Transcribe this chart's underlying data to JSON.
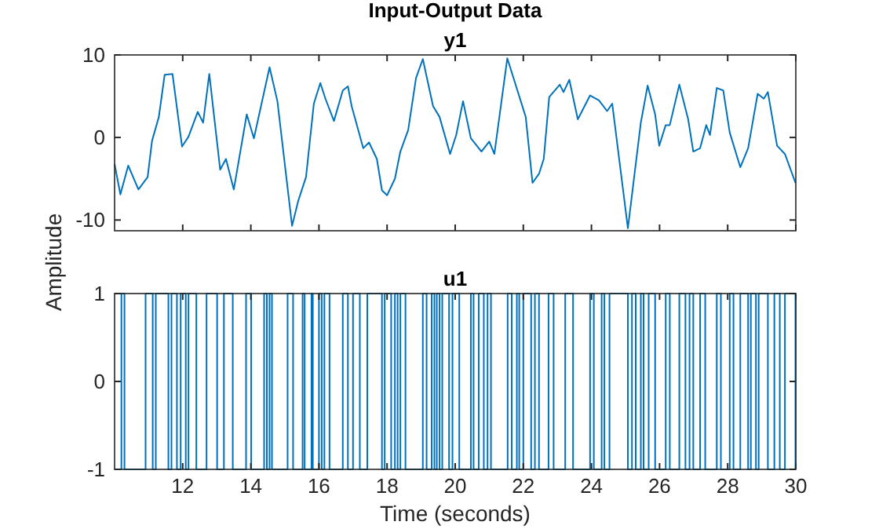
{
  "chart_data": [
    {
      "type": "line",
      "title": "Input-Output Data",
      "subtitle": "y1",
      "ylabel": "Amplitude",
      "xlim": [
        10,
        30
      ],
      "ylim": [
        -11.3,
        10
      ],
      "xticks": [
        12,
        14,
        16,
        18,
        20,
        22,
        24,
        26,
        28,
        30
      ],
      "yticks": [
        -10,
        0,
        10
      ],
      "tick_labels": "y",
      "grid": false,
      "series": [
        {
          "color": "#0072bd",
          "x": [
            10.0,
            10.17,
            10.4,
            10.7,
            10.97,
            11.1,
            11.3,
            11.47,
            11.7,
            11.98,
            12.17,
            12.44,
            12.6,
            12.78,
            13.1,
            13.27,
            13.5,
            13.88,
            14.09,
            14.55,
            14.78,
            15.21,
            15.39,
            15.62,
            15.85,
            16.04,
            16.19,
            16.44,
            16.7,
            16.85,
            16.96,
            17.3,
            17.47,
            17.7,
            17.85,
            18.0,
            18.23,
            18.39,
            18.62,
            18.85,
            19.05,
            19.35,
            19.54,
            19.85,
            20.03,
            20.23,
            20.46,
            20.77,
            21.0,
            21.15,
            21.53,
            22.07,
            22.27,
            22.46,
            22.6,
            22.76,
            23.07,
            23.18,
            23.35,
            23.6,
            23.96,
            24.22,
            24.46,
            24.61,
            25.07,
            25.45,
            25.65,
            25.87,
            25.99,
            26.18,
            26.3,
            26.58,
            26.84,
            26.99,
            27.19,
            27.37,
            27.48,
            27.68,
            27.87,
            28.06,
            28.37,
            28.6,
            28.88,
            29.06,
            29.18,
            29.45,
            29.68,
            29.99
          ],
          "values": [
            -3.2,
            -6.9,
            -3.4,
            -6.3,
            -4.8,
            -0.4,
            2.5,
            7.6,
            7.7,
            -1.1,
            0.1,
            3.1,
            1.8,
            7.7,
            -3.9,
            -2.6,
            -6.3,
            2.8,
            -0.1,
            8.5,
            4.4,
            -10.7,
            -7.7,
            -4.8,
            4.1,
            6.6,
            4.7,
            2.0,
            5.7,
            6.2,
            3.8,
            -1.3,
            -0.6,
            -2.6,
            -6.4,
            -7.0,
            -5.0,
            -1.7,
            0.9,
            7.2,
            9.5,
            3.8,
            2.5,
            -2.0,
            0.3,
            4.4,
            -0.1,
            -1.7,
            -0.5,
            -2.0,
            9.6,
            2.5,
            -5.5,
            -4.4,
            -2.6,
            4.9,
            6.4,
            5.5,
            7.0,
            2.2,
            5.1,
            4.5,
            3.2,
            4.1,
            -11.0,
            1.8,
            6.3,
            2.8,
            -1.0,
            1.5,
            1.5,
            6.4,
            2.2,
            -1.7,
            -1.3,
            1.5,
            0.3,
            6.0,
            5.7,
            0.6,
            -3.6,
            -1.3,
            5.3,
            4.7,
            5.5,
            -1.0,
            -2.0,
            -5.5
          ]
        }
      ]
    },
    {
      "type": "step",
      "title": "u1",
      "xlabel": "Time (seconds)",
      "xlim": [
        10,
        30
      ],
      "ylim": [
        -1,
        1
      ],
      "xticks": [
        12,
        14,
        16,
        18,
        20,
        22,
        24,
        26,
        28,
        30
      ],
      "yticks": [
        -1,
        0,
        1
      ],
      "grid": false,
      "series": [
        {
          "color": "#0072bd",
          "x": [
            10,
            10.2,
            10.29,
            10.91,
            11.12,
            11.21,
            11.58,
            11.67,
            11.83,
            11.94,
            12.09,
            12.17,
            12.4,
            12.7,
            13.01,
            13.21,
            13.47,
            13.86,
            14.01,
            14.39,
            14.47,
            14.55,
            14.62,
            15.08,
            15.24,
            15.52,
            15.58,
            15.78,
            15.82,
            16.0,
            16.08,
            16.16,
            16.31,
            16.7,
            16.85,
            17.0,
            17.2,
            17.42,
            17.85,
            17.93,
            18.12,
            18.23,
            18.31,
            18.39,
            18.54,
            19.05,
            19.16,
            19.31,
            19.39,
            19.46,
            19.54,
            19.62,
            19.82,
            19.92,
            20.12,
            20.46,
            20.54,
            20.69,
            20.84,
            20.95,
            21.05,
            21.54,
            21.66,
            21.81,
            21.88,
            22.0,
            22.23,
            22.34,
            22.46,
            22.74,
            22.89,
            23.23,
            23.46,
            23.96,
            24.07,
            24.3,
            24.38,
            24.53,
            25.07,
            25.19,
            25.3,
            25.45,
            25.53,
            25.68,
            25.87,
            26.18,
            26.3,
            26.58,
            26.76,
            26.88,
            26.99,
            27.19,
            27.34,
            27.68,
            27.8,
            28.06,
            28.17,
            28.37,
            28.6,
            28.68,
            28.83,
            28.91,
            29.18,
            29.37,
            29.53,
            29.68,
            29.99,
            30
          ],
          "values": [
            -1,
            1,
            -1,
            1,
            -1,
            1,
            -1,
            1,
            -1,
            1,
            -1,
            1,
            -1,
            1,
            -1,
            1,
            -1,
            1,
            -1,
            1,
            -1,
            1,
            -1,
            1,
            -1,
            1,
            -1,
            1,
            -1,
            1,
            -1,
            1,
            -1,
            1,
            -1,
            1,
            -1,
            1,
            -1,
            1,
            -1,
            1,
            -1,
            1,
            -1,
            1,
            -1,
            1,
            -1,
            1,
            -1,
            1,
            -1,
            1,
            -1,
            1,
            -1,
            1,
            -1,
            1,
            -1,
            1,
            -1,
            1,
            -1,
            1,
            -1,
            1,
            -1,
            1,
            -1,
            1,
            -1,
            1,
            -1,
            1,
            -1,
            1,
            -1,
            1,
            -1,
            1,
            -1,
            1,
            -1,
            1,
            -1,
            1,
            -1,
            1,
            -1,
            1,
            -1,
            1,
            -1,
            1,
            -1,
            1,
            -1,
            1,
            -1,
            1,
            -1,
            1,
            -1,
            1,
            -1,
            -1
          ]
        }
      ]
    }
  ]
}
